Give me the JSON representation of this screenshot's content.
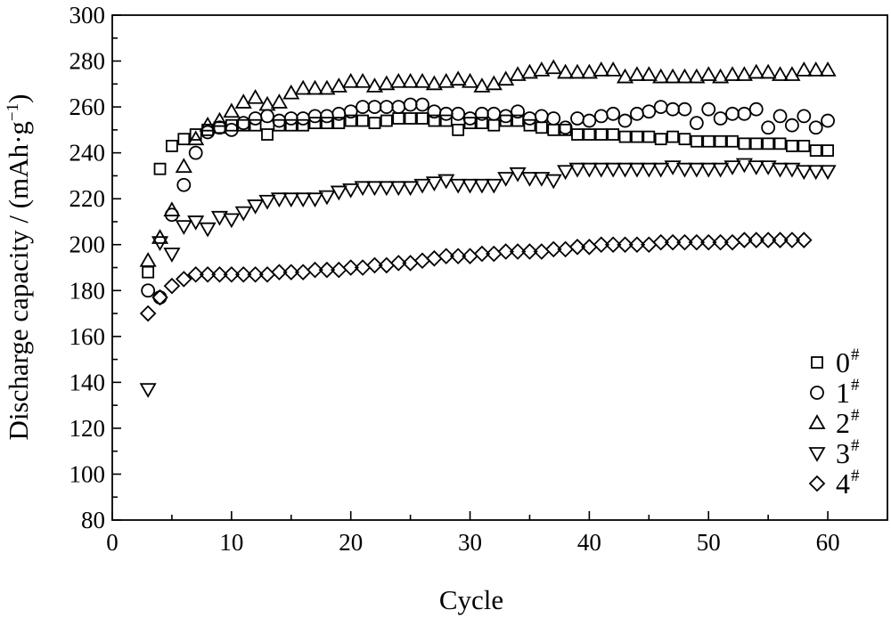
{
  "chart_data": {
    "type": "scatter",
    "title": "",
    "xlabel": "Cycle",
    "ylabel": "Discharge capacity / (mAh·g",
    "ylabel_sup": "−1",
    "ylabel_suffix": ")",
    "xlim": [
      0,
      65
    ],
    "ylim": [
      80,
      300
    ],
    "xticks": [
      0,
      10,
      20,
      30,
      40,
      50,
      60
    ],
    "yticks": [
      80,
      100,
      120,
      140,
      160,
      180,
      200,
      220,
      240,
      260,
      280,
      300
    ],
    "grid": false,
    "legend_position": "bottom-right",
    "series": [
      {
        "name": "0",
        "name_sup": "#",
        "marker": "square",
        "x": [
          3,
          4,
          5,
          6,
          7,
          8,
          9,
          10,
          11,
          12,
          13,
          14,
          15,
          16,
          17,
          18,
          19,
          20,
          21,
          22,
          23,
          24,
          25,
          26,
          27,
          28,
          29,
          30,
          31,
          32,
          33,
          34,
          35,
          36,
          37,
          38,
          39,
          40,
          41,
          42,
          43,
          44,
          45,
          46,
          47,
          48,
          49,
          50,
          51,
          52,
          53,
          54,
          55,
          56,
          57,
          58,
          59,
          60
        ],
        "y": [
          188,
          233,
          243,
          246,
          248,
          250,
          251,
          252,
          252,
          252,
          248,
          252,
          252,
          252,
          253,
          253,
          253,
          254,
          254,
          253,
          254,
          255,
          255,
          255,
          254,
          254,
          250,
          253,
          253,
          252,
          254,
          254,
          252,
          251,
          250,
          250,
          248,
          248,
          248,
          248,
          247,
          247,
          247,
          246,
          247,
          246,
          245,
          245,
          245,
          245,
          244,
          244,
          244,
          244,
          243,
          243,
          241,
          241
        ]
      },
      {
        "name": "1",
        "name_sup": "#",
        "marker": "circle",
        "x": [
          3,
          4,
          5,
          6,
          7,
          8,
          9,
          10,
          11,
          12,
          13,
          14,
          15,
          16,
          17,
          18,
          19,
          20,
          21,
          22,
          23,
          24,
          25,
          26,
          27,
          28,
          29,
          30,
          31,
          32,
          33,
          34,
          35,
          36,
          37,
          38,
          39,
          40,
          41,
          42,
          43,
          44,
          45,
          46,
          47,
          48,
          49,
          50,
          51,
          52,
          53,
          54,
          55,
          56,
          57,
          58,
          59,
          60
        ],
        "y": [
          180,
          177,
          213,
          226,
          240,
          249,
          251,
          250,
          253,
          255,
          256,
          254,
          255,
          255,
          256,
          256,
          257,
          258,
          260,
          260,
          260,
          260,
          261,
          261,
          258,
          257,
          257,
          255,
          257,
          257,
          256,
          258,
          255,
          256,
          255,
          251,
          255,
          254,
          256,
          257,
          254,
          257,
          258,
          260,
          259,
          259,
          253,
          259,
          255,
          257,
          257,
          259,
          251,
          256,
          252,
          256,
          251,
          254
        ]
      },
      {
        "name": "2",
        "name_sup": "#",
        "marker": "triangle-up",
        "x": [
          3,
          4,
          5,
          6,
          7,
          8,
          9,
          10,
          11,
          12,
          13,
          14,
          15,
          16,
          17,
          18,
          19,
          20,
          21,
          22,
          23,
          24,
          25,
          26,
          27,
          28,
          29,
          30,
          31,
          32,
          33,
          34,
          35,
          36,
          37,
          38,
          39,
          40,
          41,
          42,
          43,
          44,
          45,
          46,
          47,
          48,
          49,
          50,
          51,
          52,
          53,
          54,
          55,
          56,
          57,
          58,
          59,
          60
        ],
        "y": [
          193,
          203,
          215,
          234,
          246,
          252,
          254,
          258,
          262,
          264,
          261,
          262,
          266,
          268,
          268,
          268,
          269,
          271,
          271,
          269,
          270,
          271,
          271,
          271,
          270,
          271,
          272,
          271,
          269,
          270,
          272,
          274,
          275,
          276,
          277,
          275,
          275,
          275,
          276,
          276,
          273,
          274,
          274,
          273,
          273,
          273,
          273,
          274,
          273,
          274,
          274,
          275,
          275,
          274,
          274,
          276,
          276,
          276
        ]
      },
      {
        "name": "3",
        "name_sup": "#",
        "marker": "triangle-down",
        "x": [
          3,
          4,
          5,
          6,
          7,
          8,
          9,
          10,
          11,
          12,
          13,
          14,
          15,
          16,
          17,
          18,
          19,
          20,
          21,
          22,
          23,
          24,
          25,
          26,
          27,
          28,
          29,
          30,
          31,
          32,
          33,
          34,
          35,
          36,
          37,
          38,
          39,
          40,
          41,
          42,
          43,
          44,
          45,
          46,
          47,
          48,
          49,
          50,
          51,
          52,
          53,
          54,
          55,
          56,
          57,
          58,
          59,
          60
        ],
        "y": [
          137,
          201,
          196,
          208,
          210,
          207,
          212,
          211,
          214,
          217,
          219,
          220,
          220,
          220,
          220,
          221,
          223,
          224,
          225,
          225,
          225,
          225,
          225,
          226,
          227,
          228,
          226,
          226,
          226,
          226,
          229,
          231,
          229,
          229,
          228,
          232,
          233,
          233,
          233,
          233,
          233,
          233,
          233,
          233,
          234,
          233,
          233,
          233,
          233,
          234,
          235,
          234,
          234,
          233,
          233,
          232,
          232,
          232
        ]
      },
      {
        "name": "4",
        "name_sup": "#",
        "marker": "diamond",
        "x": [
          3,
          4,
          5,
          6,
          7,
          8,
          9,
          10,
          11,
          12,
          13,
          14,
          15,
          16,
          17,
          18,
          19,
          20,
          21,
          22,
          23,
          24,
          25,
          26,
          27,
          28,
          29,
          30,
          31,
          32,
          33,
          34,
          35,
          36,
          37,
          38,
          39,
          40,
          41,
          42,
          43,
          44,
          45,
          46,
          47,
          48,
          49,
          50,
          51,
          52,
          53,
          54,
          55,
          56,
          57,
          58
        ],
        "y": [
          170,
          177,
          182,
          185,
          187,
          187,
          187,
          187,
          187,
          187,
          187,
          188,
          188,
          188,
          189,
          189,
          189,
          190,
          190,
          191,
          191,
          192,
          192,
          193,
          194,
          195,
          195,
          195,
          196,
          196,
          197,
          197,
          197,
          197,
          198,
          198,
          199,
          199,
          200,
          200,
          200,
          200,
          200,
          201,
          201,
          201,
          201,
          201,
          201,
          201,
          202,
          202,
          202,
          202,
          202,
          202
        ]
      }
    ]
  }
}
